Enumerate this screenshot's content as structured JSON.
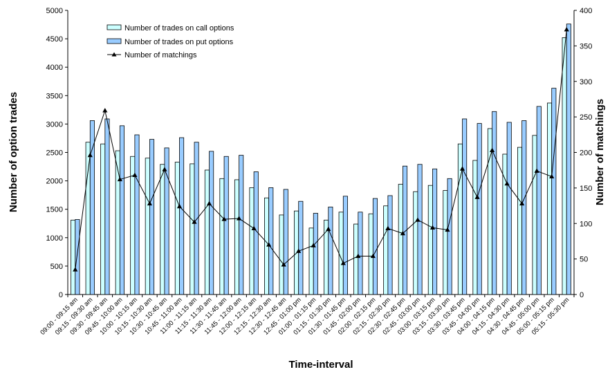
{
  "chart_data": {
    "type": "bar",
    "title": "",
    "xlabel": "Time-interval",
    "ylabel": "Number of option trades",
    "y2label": "Number of matchings",
    "ylim": [
      0,
      5000
    ],
    "y2lim": [
      0,
      400
    ],
    "yticks": [
      "0",
      "500",
      "1000",
      "1500",
      "2000",
      "2500",
      "3000",
      "3500",
      "4000",
      "4500",
      "5000"
    ],
    "y2ticks": [
      "0",
      "50",
      "100",
      "150",
      "200",
      "250",
      "300",
      "350",
      "400"
    ],
    "categories": [
      "09:00 - 09:15 am",
      "09:15 - 09:30 am",
      "09:30 - 09:45 am",
      "09:45 - 10:00 am",
      "10:00 - 10:15 am",
      "10:15 - 10:30 am",
      "10:30 - 10:45 am",
      "10:45 - 11:00 am",
      "11:00 - 11:15 am",
      "11:15 - 11:30 am",
      "11:30 - 11:45 am",
      "11:45 - 12:00 am",
      "12:00 - 12:15 am",
      "12:15 - 12:30 am",
      "12:30 - 12:45 am",
      "12:45 - 01:00 pm",
      "01:00 - 01:15 pm",
      "01:15 - 01:30 pm",
      "01:30 - 01:45 pm",
      "01:45 - 02:00 pm",
      "02:00 - 02:15 pm",
      "02:15 - 02:30 pm",
      "02:30 - 02:45 pm",
      "02:45 - 03:00 pm",
      "03:00 - 03:15 pm",
      "03:15 - 03:30 pm",
      "03:30 - 03:45 pm",
      "03:45 - 04:00 pm",
      "04:00 - 04:15 pm",
      "04:15 - 04:30 pm",
      "04:30 - 04:45 pm",
      "04:45 - 05:00 pm",
      "05:00 - 05:15 pm",
      "05:15 - 05:30 pm"
    ],
    "series": [
      {
        "name": "Number of trades on call options",
        "kind": "bar",
        "axis": "left",
        "color": "#ccffff",
        "values": [
          1310,
          2680,
          2650,
          2530,
          2430,
          2400,
          2290,
          2330,
          2300,
          2190,
          2040,
          2020,
          1880,
          1700,
          1400,
          1470,
          1170,
          1310,
          1450,
          1240,
          1420,
          1560,
          1940,
          1810,
          1920,
          1830,
          2650,
          2360,
          2920,
          2470,
          2590,
          2800,
          3370,
          4520
        ]
      },
      {
        "name": "Number of trades on put options",
        "kind": "bar",
        "axis": "left",
        "color": "#99ccff",
        "values": [
          1320,
          3060,
          3090,
          2970,
          2810,
          2730,
          2580,
          2760,
          2680,
          2520,
          2430,
          2450,
          2160,
          1880,
          1850,
          1640,
          1430,
          1540,
          1730,
          1450,
          1690,
          1740,
          2260,
          2290,
          2210,
          2040,
          3090,
          3010,
          3220,
          3030,
          3060,
          3310,
          3630,
          4760
        ]
      },
      {
        "name": "Number of matchings",
        "kind": "line",
        "axis": "right",
        "color": "#000000",
        "values": [
          35,
          196,
          259,
          162,
          168,
          128,
          176,
          124,
          102,
          128,
          106,
          107,
          93,
          70,
          42,
          61,
          69,
          92,
          44,
          54,
          54,
          93,
          86,
          105,
          94,
          91,
          177,
          137,
          203,
          156,
          128,
          174,
          166,
          373
        ]
      }
    ],
    "legend_position": "top-left",
    "grid": false
  }
}
